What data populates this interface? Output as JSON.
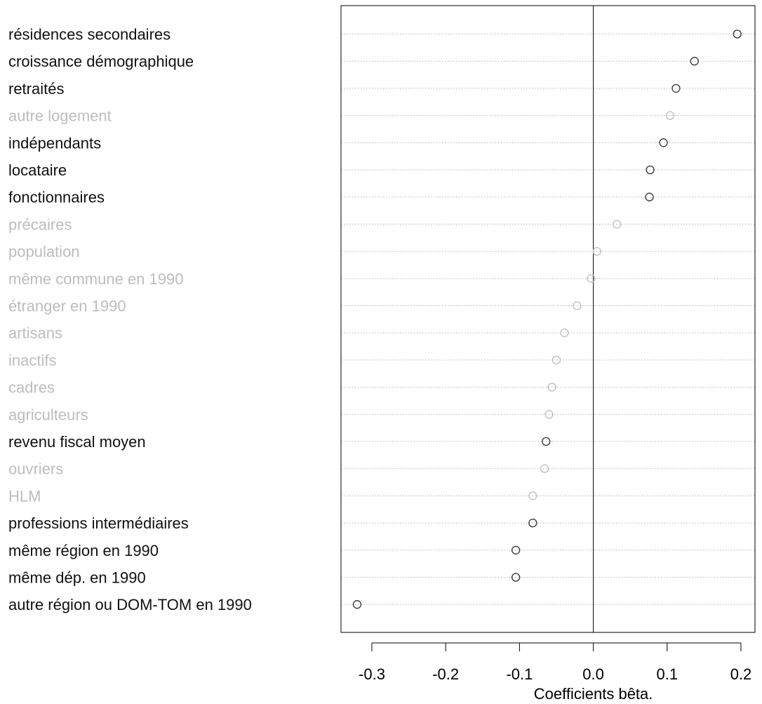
{
  "chart_data": {
    "type": "dot",
    "xlabel": "Coefficients bêta.",
    "xlim": [
      -0.34,
      0.22
    ],
    "xticks": [
      "-0.3",
      "-0.2",
      "-0.1",
      "0.0",
      "0.1",
      "0.2"
    ],
    "reference_line": 0.0,
    "grid": "horizontal dotted",
    "colors": {
      "significant": "#000000",
      "not_significant": "#bdbdbd"
    },
    "items": [
      {
        "label": "résidences secondaires",
        "value": 0.195,
        "significant": true
      },
      {
        "label": "croissance démographique",
        "value": 0.137,
        "significant": true
      },
      {
        "label": "retraités",
        "value": 0.112,
        "significant": true
      },
      {
        "label": "autre logement",
        "value": 0.104,
        "significant": false
      },
      {
        "label": "indépendants",
        "value": 0.095,
        "significant": true
      },
      {
        "label": "locataire",
        "value": 0.077,
        "significant": true
      },
      {
        "label": "fonctionnaires",
        "value": 0.076,
        "significant": true
      },
      {
        "label": "précaires",
        "value": 0.032,
        "significant": false
      },
      {
        "label": "population",
        "value": 0.005,
        "significant": false
      },
      {
        "label": "même commune en 1990",
        "value": -0.003,
        "significant": false
      },
      {
        "label": "étranger en 1990",
        "value": -0.022,
        "significant": false
      },
      {
        "label": "artisans",
        "value": -0.039,
        "significant": false
      },
      {
        "label": "inactifs",
        "value": -0.05,
        "significant": false
      },
      {
        "label": "cadres",
        "value": -0.056,
        "significant": false
      },
      {
        "label": "agriculteurs",
        "value": -0.06,
        "significant": false
      },
      {
        "label": "revenu fiscal moyen",
        "value": -0.064,
        "significant": true
      },
      {
        "label": "ouvriers",
        "value": -0.066,
        "significant": false
      },
      {
        "label": "HLM",
        "value": -0.082,
        "significant": false
      },
      {
        "label": "professions intermédiaires",
        "value": -0.082,
        "significant": true
      },
      {
        "label": "même région en 1990",
        "value": -0.105,
        "significant": true
      },
      {
        "label": "même dép. en 1990",
        "value": -0.105,
        "significant": true
      },
      {
        "label": "autre région ou DOM-TOM en 1990",
        "value": -0.32,
        "significant": true
      }
    ]
  }
}
